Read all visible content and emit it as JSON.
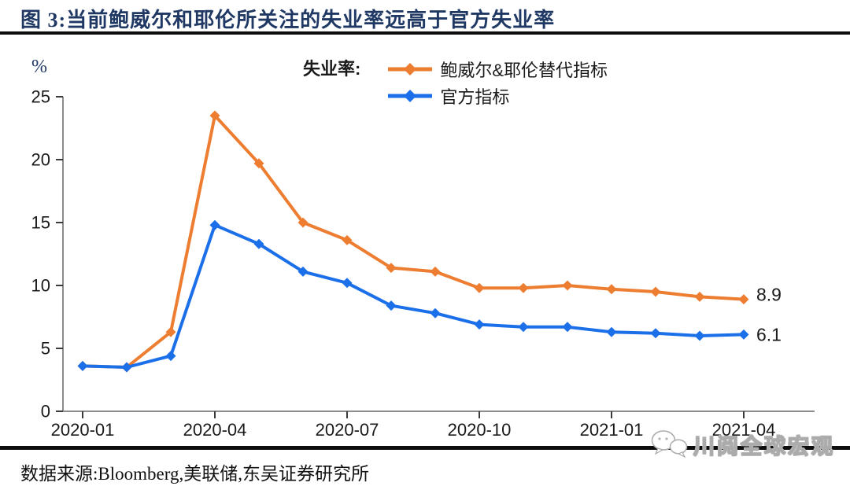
{
  "header": {
    "title": "图 3:当前鲍威尔和耶伦所关注的失业率远高于官方失业率"
  },
  "chart_data": {
    "type": "line",
    "unit_label": "%",
    "legend_title": "失业率:",
    "legend_position": "top-center",
    "grid": false,
    "x": [
      "2020-01",
      "2020-02",
      "2020-03",
      "2020-04",
      "2020-05",
      "2020-06",
      "2020-07",
      "2020-08",
      "2020-09",
      "2020-10",
      "2020-11",
      "2020-12",
      "2021-01",
      "2021-02",
      "2021-03",
      "2021-04"
    ],
    "x_tick_labels": [
      "2020-01",
      "2020-04",
      "2020-07",
      "2020-10",
      "2021-01",
      "2021-04"
    ],
    "ylim": [
      0,
      25
    ],
    "y_ticks": [
      0,
      5,
      10,
      15,
      20,
      25
    ],
    "marker": "diamond",
    "series": [
      {
        "name": "鲍威尔&耶伦替代指标",
        "color": "#ED7D31",
        "values": [
          3.6,
          3.5,
          6.3,
          23.5,
          19.7,
          15.0,
          13.6,
          11.4,
          11.1,
          9.8,
          9.8,
          10.0,
          9.7,
          9.5,
          9.1,
          8.9
        ],
        "end_label": "8.9"
      },
      {
        "name": "官方指标",
        "color": "#1B6FE8",
        "values": [
          3.6,
          3.5,
          4.4,
          14.8,
          13.3,
          11.1,
          10.2,
          8.4,
          7.8,
          6.9,
          6.7,
          6.7,
          6.3,
          6.2,
          6.0,
          6.1
        ],
        "end_label": "6.1"
      }
    ]
  },
  "footer": {
    "source": "数据来源:Bloomberg,美联储,东吴证券研究所",
    "watermark": "川阅全球宏观"
  }
}
